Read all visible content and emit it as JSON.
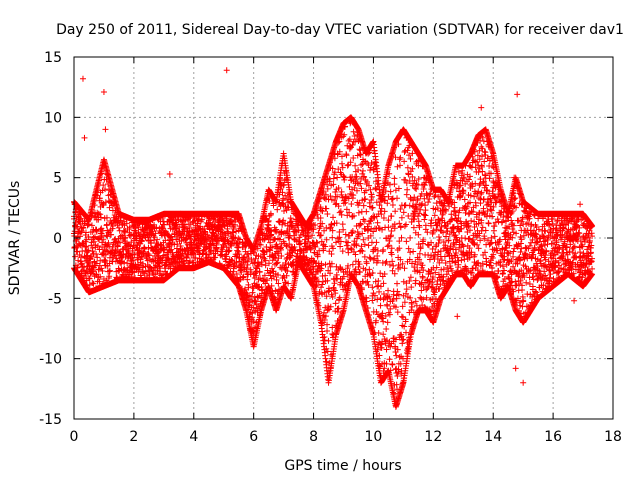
{
  "chart_data": {
    "type": "scatter",
    "title": "Day 250 of 2011, Sidereal Day-to-day VTEC variation (SDTVAR) for receiver dav1",
    "xlabel": "GPS time / hours",
    "ylabel": "SDTVAR / TECUs",
    "xlim": [
      0,
      18
    ],
    "ylim": [
      -15,
      15
    ],
    "xticks": [
      0,
      2,
      4,
      6,
      8,
      10,
      12,
      14,
      16,
      18
    ],
    "yticks": [
      -15,
      -10,
      -5,
      0,
      5,
      10,
      15
    ],
    "xtick_labels": [
      "0",
      "2",
      "4",
      "6",
      "8",
      "10",
      "12",
      "14",
      "16",
      "18"
    ],
    "ytick_labels": [
      "-15",
      "-10",
      "-5",
      "0",
      "5",
      "10",
      "15"
    ],
    "grid": true,
    "marker": "+",
    "color": "#ff0000",
    "series": [
      {
        "name": "SDTVAR",
        "envelope": {
          "x": [
            0,
            0.5,
            1,
            1.5,
            2,
            2.5,
            3,
            3.5,
            4,
            4.5,
            5,
            5.5,
            5.75,
            6,
            6.25,
            6.5,
            6.75,
            7,
            7.25,
            7.5,
            7.75,
            8,
            8.25,
            8.5,
            8.75,
            9,
            9.25,
            9.5,
            9.75,
            10,
            10.25,
            10.5,
            10.75,
            11,
            11.25,
            11.5,
            11.75,
            12,
            12.25,
            12.5,
            12.75,
            13,
            13.25,
            13.5,
            13.75,
            14,
            14.25,
            14.5,
            14.75,
            15,
            15.5,
            16,
            16.5,
            17,
            17.3
          ],
          "min": [
            -2.5,
            -4.5,
            -4,
            -3.5,
            -3.5,
            -3.5,
            -3.5,
            -2.5,
            -2.5,
            -2,
            -2.5,
            -4,
            -6,
            -9,
            -6,
            -4,
            -6,
            -4,
            -5,
            -2,
            -3,
            -4,
            -7,
            -12,
            -8,
            -6,
            -3,
            -4,
            -6,
            -8,
            -12,
            -11,
            -14,
            -12,
            -8,
            -6,
            -6,
            -7,
            -5,
            -4,
            -3,
            -3,
            -4,
            -3,
            -3,
            -3,
            -5,
            -4,
            -6,
            -7,
            -5,
            -4,
            -3,
            -4,
            -3
          ],
          "max": [
            3,
            1.5,
            6.5,
            2,
            1.5,
            1.5,
            2,
            2,
            2,
            2,
            2,
            2,
            0,
            -1,
            1,
            4,
            3,
            7,
            3,
            2,
            1,
            2,
            4,
            6,
            8,
            9.5,
            10,
            9,
            7,
            8,
            3,
            6,
            8,
            9,
            8,
            7,
            6,
            4,
            4,
            3,
            6,
            6,
            7,
            8.5,
            9,
            7,
            4,
            2,
            5,
            3,
            2,
            2,
            2,
            2,
            1
          ]
        },
        "outliers": {
          "x": [
            0.3,
            0.35,
            1.0,
            1.05,
            5.1,
            3.2,
            13.6,
            14.8,
            14.7,
            15.0,
            12.8,
            16.9,
            10.2,
            16.7,
            14.75
          ],
          "y": [
            13.2,
            8.3,
            12.1,
            9.0,
            13.9,
            5.3,
            10.8,
            11.9,
            5.0,
            -12.0,
            -6.5,
            2.8,
            -10.8,
            -5.2,
            -10.8
          ]
        }
      }
    ]
  }
}
